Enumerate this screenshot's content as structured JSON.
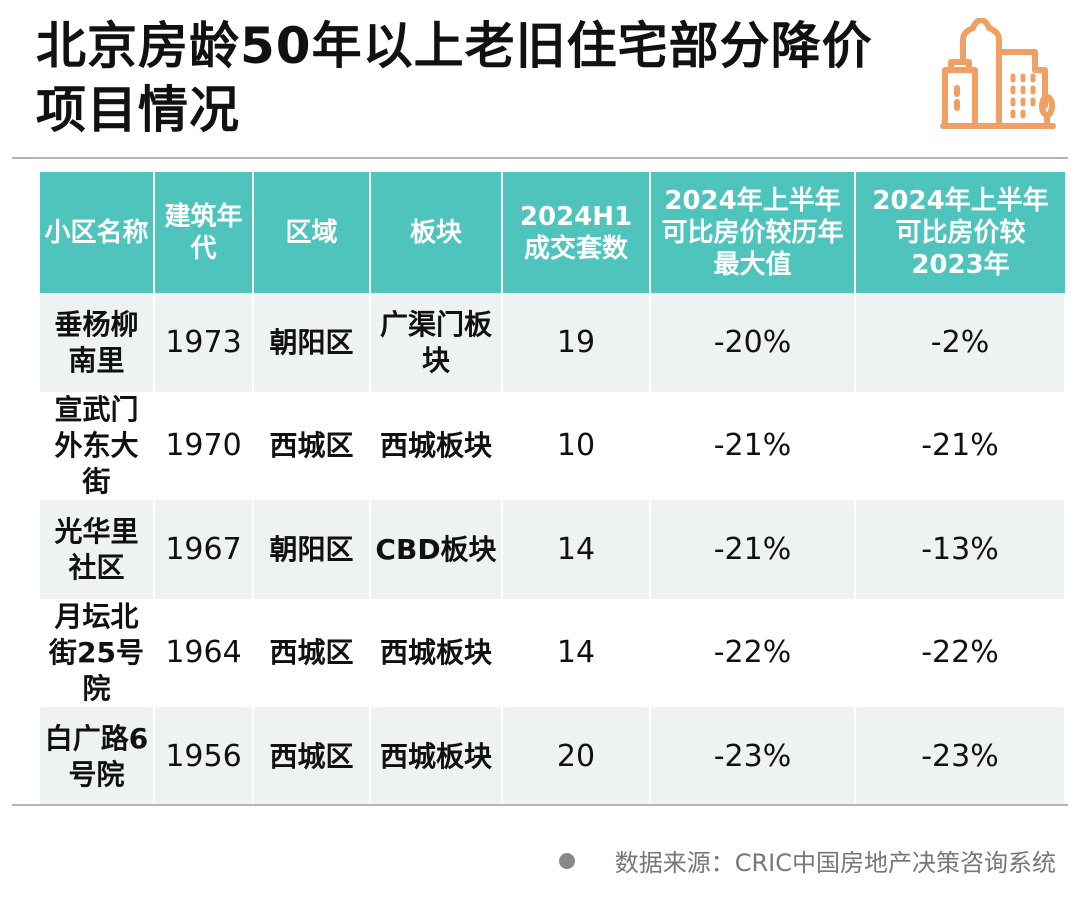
{
  "title": "北京房龄50年以上老旧住宅部分降价项目情况",
  "icon": "city-buildings-icon",
  "colors": {
    "header_bg": "#4ec4bd",
    "icon": "#f0a064",
    "row_alt": "#eef3f2"
  },
  "table": {
    "headers": [
      "小区名称",
      "建筑年代",
      "区域",
      "板块",
      "2024H1成交套数",
      "2024年上半年可比房价较历年最大值",
      "2024年上半年可比房价较2023年"
    ],
    "rows": [
      [
        "垂杨柳南里",
        "1973",
        "朝阳区",
        "广渠门板块",
        "19",
        "-20%",
        "-2%"
      ],
      [
        "宣武门外东大街",
        "1970",
        "西城区",
        "西城板块",
        "10",
        "-21%",
        "-21%"
      ],
      [
        "光华里社区",
        "1967",
        "朝阳区",
        "CBD板块",
        "14",
        "-21%",
        "-13%"
      ],
      [
        "月坛北街25号院",
        "1964",
        "西城区",
        "西城板块",
        "14",
        "-22%",
        "-22%"
      ],
      [
        "白广路6号院",
        "1956",
        "西城区",
        "西城板块",
        "20",
        "-23%",
        "-23%"
      ]
    ]
  },
  "source": "数据来源：CRIC中国房地产决策咨询系统"
}
